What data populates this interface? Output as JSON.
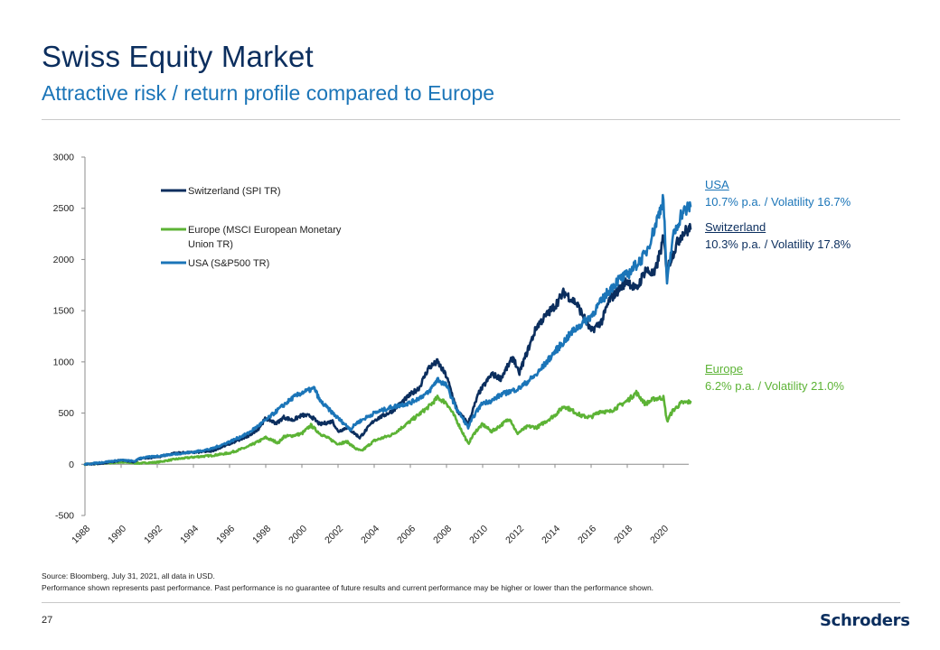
{
  "header": {
    "title": "Swiss Equity Market",
    "subtitle": "Attractive risk / return profile compared to Europe"
  },
  "colors": {
    "title": "#0b2e5e",
    "subtitle": "#1b75b8",
    "switzerland": "#0b2e5e",
    "europe": "#5cb335",
    "usa": "#1b75b8"
  },
  "chart_data": {
    "type": "line",
    "title": "",
    "xlabel": "",
    "ylabel": "",
    "xlim": [
      1988,
      2021.6
    ],
    "ylim": [
      -500,
      3000
    ],
    "y_ticks": [
      -500,
      0,
      500,
      1000,
      1500,
      2000,
      2500,
      3000
    ],
    "x_ticks": [
      "1988",
      "1990",
      "1992",
      "1994",
      "1996",
      "1998",
      "2000",
      "2002",
      "2004",
      "2006",
      "2008",
      "2010",
      "2012",
      "2014",
      "2016",
      "2018",
      "2020"
    ],
    "legend_position": "top-left",
    "series": [
      {
        "name": "Switzerland (SPI TR)",
        "x": [
          1988,
          1989,
          1990,
          1990.7,
          1991,
          1992,
          1993,
          1994,
          1995,
          1996,
          1997,
          1997.6,
          1998,
          1998.6,
          1999,
          1999.5,
          2000,
          2000.5,
          2001,
          2001.7,
          2002,
          2002.5,
          2003,
          2003.2,
          2004,
          2005,
          2006,
          2006.5,
          2007,
          2007.5,
          2008,
          2008.6,
          2009.2,
          2009.8,
          2010.5,
          2011,
          2011.7,
          2012,
          2013,
          2014,
          2014.5,
          2015.2,
          2016,
          2016.6,
          2017,
          2018,
          2018.5,
          2019,
          2019.5,
          2020,
          2020.2,
          2020.5,
          2021,
          2021.5
        ],
        "values": [
          0,
          10,
          40,
          25,
          55,
          70,
          110,
          115,
          130,
          200,
          270,
          350,
          450,
          400,
          460,
          430,
          480,
          470,
          390,
          420,
          320,
          360,
          290,
          260,
          430,
          520,
          680,
          750,
          940,
          1000,
          860,
          520,
          400,
          700,
          880,
          840,
          1050,
          880,
          1350,
          1550,
          1680,
          1570,
          1300,
          1400,
          1600,
          1800,
          1700,
          1900,
          1850,
          2200,
          1900,
          2050,
          2250,
          2300
        ]
      },
      {
        "name": "Europe (MSCI European Monetary Union TR)",
        "x": [
          1988,
          1990,
          1991,
          1992,
          1993,
          1994,
          1995,
          1996,
          1997,
          1998,
          1998.7,
          1999,
          1999.5,
          2000,
          2000.5,
          2001,
          2002,
          2002.5,
          2003,
          2003.3,
          2004,
          2005,
          2006,
          2007,
          2007.5,
          2008,
          2008.5,
          2009.2,
          2009.6,
          2010,
          2010.5,
          2011,
          2011.5,
          2011.9,
          2012.5,
          2013,
          2014,
          2014.5,
          2015,
          2015.5,
          2016,
          2016.5,
          2017,
          2018,
          2018.5,
          2019,
          2019.5,
          2020,
          2020.2,
          2020.5,
          2021,
          2021.5
        ],
        "values": [
          0,
          20,
          10,
          20,
          50,
          70,
          85,
          110,
          170,
          260,
          210,
          270,
          280,
          300,
          380,
          300,
          200,
          220,
          150,
          130,
          230,
          290,
          420,
          560,
          650,
          600,
          450,
          200,
          320,
          390,
          320,
          380,
          450,
          300,
          370,
          360,
          480,
          570,
          520,
          470,
          460,
          520,
          510,
          620,
          700,
          590,
          640,
          650,
          420,
          520,
          600,
          610
        ]
      },
      {
        "name": "USA (S&P500 TR)",
        "x": [
          1988,
          1989,
          1990,
          1990.8,
          1991,
          1992,
          1993,
          1994,
          1995,
          1996,
          1997,
          1998,
          1999,
          1999.5,
          2000,
          2000.7,
          2001,
          2002,
          2002.7,
          2003,
          2004,
          2005,
          2006,
          2007,
          2007.5,
          2008,
          2008.5,
          2009.2,
          2009.6,
          2010,
          2010.5,
          2011,
          2012,
          2013,
          2014,
          2015,
          2016,
          2017,
          2017.5,
          2018,
          2018.5,
          2019,
          2019.5,
          2020,
          2020.2,
          2020.5,
          2021,
          2021.5
        ],
        "values": [
          0,
          20,
          40,
          30,
          60,
          80,
          100,
          120,
          150,
          220,
          300,
          430,
          580,
          650,
          700,
          740,
          620,
          450,
          340,
          400,
          500,
          560,
          600,
          700,
          830,
          770,
          560,
          360,
          500,
          600,
          620,
          680,
          740,
          880,
          1100,
          1300,
          1450,
          1700,
          1800,
          1850,
          1950,
          2050,
          2300,
          2600,
          1750,
          2200,
          2450,
          2520
        ]
      }
    ],
    "annotations": [
      {
        "name": "USA",
        "stats": "10.7% p.a. / Volatility 16.7%"
      },
      {
        "name": "Switzerland",
        "stats": "10.3% p.a. / Volatility 17.8%"
      },
      {
        "name": "Europe",
        "stats": "6.2% p.a. / Volatility 21.0%"
      }
    ]
  },
  "footer": {
    "source": "Source: Bloomberg, July 31, 2021, all data in USD.",
    "disclaimer": "Performance shown represents past performance. Past performance is no guarantee of future results and current performance may be higher or lower than the performance shown.",
    "page_number": "27",
    "brand": "Schroders"
  }
}
